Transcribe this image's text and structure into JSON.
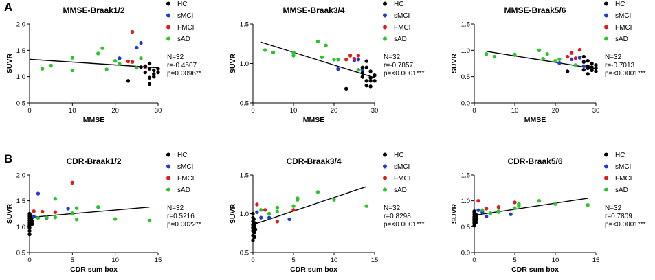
{
  "colors": {
    "HC": "#000000",
    "sMCI": "#1f3bd1",
    "FMCI": "#e11b1b",
    "sAD": "#2cc42c"
  },
  "legend": [
    "HC",
    "sMCI",
    "FMCI",
    "sAD"
  ],
  "panel_labels": [
    "A",
    "B"
  ],
  "chart_data": [
    {
      "type": "scatter",
      "title": "MMSE-Braak1/2",
      "xlabel": "MMSE",
      "ylabel": "SUVR",
      "xlim": [
        0,
        30
      ],
      "ylim": [
        0.5,
        2.0
      ],
      "xticks": [
        0,
        10,
        20,
        30
      ],
      "yticks": [
        "0.5",
        "1.0",
        "1.5",
        "2.0"
      ],
      "fit": [
        [
          0,
          1.33
        ],
        [
          30,
          1.17
        ]
      ],
      "stats": [
        "N=32",
        "r=-0.4507",
        "p=0.0096**"
      ],
      "points": [
        {
          "g": "sAD",
          "x": 3,
          "y": 1.15
        },
        {
          "g": "sAD",
          "x": 5,
          "y": 1.21
        },
        {
          "g": "sAD",
          "x": 10,
          "y": 1.36
        },
        {
          "g": "sAD",
          "x": 10,
          "y": 1.12
        },
        {
          "g": "sAD",
          "x": 16,
          "y": 1.44
        },
        {
          "g": "sAD",
          "x": 17,
          "y": 1.54
        },
        {
          "g": "sAD",
          "x": 18,
          "y": 1.14
        },
        {
          "g": "sAD",
          "x": 20,
          "y": 1.3
        },
        {
          "g": "sAD",
          "x": 21,
          "y": 1.24
        },
        {
          "g": "sAD",
          "x": 25,
          "y": 1.17
        },
        {
          "g": "sAD",
          "x": 26,
          "y": 1.35
        },
        {
          "g": "sMCI",
          "x": 21,
          "y": 1.35
        },
        {
          "g": "sMCI",
          "x": 25,
          "y": 1.55
        },
        {
          "g": "sMCI",
          "x": 26,
          "y": 1.64
        },
        {
          "g": "sMCI",
          "x": 27,
          "y": 1.18
        },
        {
          "g": "FMCI",
          "x": 23,
          "y": 1.29
        },
        {
          "g": "FMCI",
          "x": 24,
          "y": 1.85
        },
        {
          "g": "FMCI",
          "x": 24,
          "y": 1.28
        },
        {
          "g": "FMCI",
          "x": 27,
          "y": 1.18
        },
        {
          "g": "HC",
          "x": 23,
          "y": 0.92
        },
        {
          "g": "HC",
          "x": 26,
          "y": 1.18
        },
        {
          "g": "HC",
          "x": 27,
          "y": 1.2
        },
        {
          "g": "HC",
          "x": 27,
          "y": 1.08
        },
        {
          "g": "HC",
          "x": 28,
          "y": 0.98
        },
        {
          "g": "HC",
          "x": 28,
          "y": 0.86
        },
        {
          "g": "HC",
          "x": 28,
          "y": 1.15
        },
        {
          "g": "HC",
          "x": 29,
          "y": 1.12
        },
        {
          "g": "HC",
          "x": 29,
          "y": 1.05
        },
        {
          "g": "HC",
          "x": 28,
          "y": 1.25
        },
        {
          "g": "HC",
          "x": 30,
          "y": 1.08
        },
        {
          "g": "HC",
          "x": 30,
          "y": 1.15
        },
        {
          "g": "HC",
          "x": 29,
          "y": 1.0
        }
      ]
    },
    {
      "type": "scatter",
      "title": "MMSE-Braak3/4",
      "xlabel": "MMSE",
      "ylabel": "SUVR",
      "xlim": [
        0,
        30
      ],
      "ylim": [
        0.5,
        1.5
      ],
      "xticks": [
        0,
        10,
        20,
        30
      ],
      "yticks": [
        "0.5",
        "1.0",
        "1.5"
      ],
      "fit": [
        [
          2,
          1.27
        ],
        [
          30,
          0.82
        ]
      ],
      "stats": [
        "N=32",
        "r=-0.7857",
        "p=<0.0001***"
      ],
      "points": [
        {
          "g": "sAD",
          "x": 3,
          "y": 1.17
        },
        {
          "g": "sAD",
          "x": 5,
          "y": 1.14
        },
        {
          "g": "sAD",
          "x": 10,
          "y": 1.14
        },
        {
          "g": "sAD",
          "x": 10,
          "y": 1.1
        },
        {
          "g": "sAD",
          "x": 16,
          "y": 1.28
        },
        {
          "g": "sAD",
          "x": 17,
          "y": 1.08
        },
        {
          "g": "sAD",
          "x": 18,
          "y": 1.23
        },
        {
          "g": "sAD",
          "x": 20,
          "y": 1.05
        },
        {
          "g": "sAD",
          "x": 21,
          "y": 1.05
        },
        {
          "g": "sAD",
          "x": 26,
          "y": 0.92
        },
        {
          "g": "sMCI",
          "x": 21,
          "y": 0.93
        },
        {
          "g": "sMCI",
          "x": 25,
          "y": 1.04
        },
        {
          "g": "sMCI",
          "x": 26,
          "y": 1.05
        },
        {
          "g": "sMCI",
          "x": 27,
          "y": 0.92
        },
        {
          "g": "FMCI",
          "x": 24,
          "y": 1.1
        },
        {
          "g": "FMCI",
          "x": 25,
          "y": 1.06
        },
        {
          "g": "FMCI",
          "x": 26,
          "y": 1.1
        },
        {
          "g": "FMCI",
          "x": 23,
          "y": 1.05
        },
        {
          "g": "HC",
          "x": 23,
          "y": 0.68
        },
        {
          "g": "HC",
          "x": 27,
          "y": 0.88
        },
        {
          "g": "HC",
          "x": 27,
          "y": 0.83
        },
        {
          "g": "HC",
          "x": 28,
          "y": 0.78
        },
        {
          "g": "HC",
          "x": 28,
          "y": 0.72
        },
        {
          "g": "HC",
          "x": 28,
          "y": 0.95
        },
        {
          "g": "HC",
          "x": 29,
          "y": 0.78
        },
        {
          "g": "HC",
          "x": 29,
          "y": 0.9
        },
        {
          "g": "HC",
          "x": 29,
          "y": 0.71
        },
        {
          "g": "HC",
          "x": 30,
          "y": 0.78
        },
        {
          "g": "HC",
          "x": 30,
          "y": 0.85
        },
        {
          "g": "HC",
          "x": 28,
          "y": 1.03
        },
        {
          "g": "HC",
          "x": 29,
          "y": 0.82
        },
        {
          "g": "HC",
          "x": 27,
          "y": 0.95
        }
      ]
    },
    {
      "type": "scatter",
      "title": "MMSE-Braak5/6",
      "xlabel": "MMSE",
      "ylabel": "SUVR",
      "xlim": [
        0,
        30
      ],
      "ylim": [
        0.0,
        1.5
      ],
      "xticks": [
        0,
        10,
        20,
        30
      ],
      "yticks": [
        "0.0",
        "0.5",
        "1.0",
        "1.5"
      ],
      "fit": [
        [
          3,
          0.98
        ],
        [
          30,
          0.65
        ]
      ],
      "stats": [
        "N=32",
        "r=-0.7013",
        "p=<0.0001***"
      ],
      "points": [
        {
          "g": "sAD",
          "x": 3,
          "y": 0.93
        },
        {
          "g": "sAD",
          "x": 5,
          "y": 0.88
        },
        {
          "g": "sAD",
          "x": 10,
          "y": 0.92
        },
        {
          "g": "sAD",
          "x": 10,
          "y": 0.91
        },
        {
          "g": "sAD",
          "x": 16,
          "y": 1.0
        },
        {
          "g": "sAD",
          "x": 17,
          "y": 0.84
        },
        {
          "g": "sAD",
          "x": 18,
          "y": 0.93
        },
        {
          "g": "sAD",
          "x": 20,
          "y": 0.8
        },
        {
          "g": "sAD",
          "x": 21,
          "y": 0.83
        },
        {
          "g": "sAD",
          "x": 25,
          "y": 0.72
        },
        {
          "g": "sMCI",
          "x": 24,
          "y": 0.83
        },
        {
          "g": "sMCI",
          "x": 26,
          "y": 0.86
        },
        {
          "g": "sMCI",
          "x": 27,
          "y": 0.7
        },
        {
          "g": "sMCI",
          "x": 21,
          "y": 0.76
        },
        {
          "g": "FMCI",
          "x": 23,
          "y": 0.88
        },
        {
          "g": "FMCI",
          "x": 24,
          "y": 0.95
        },
        {
          "g": "FMCI",
          "x": 26,
          "y": 1.01
        },
        {
          "g": "FMCI",
          "x": 25,
          "y": 0.85
        },
        {
          "g": "HC",
          "x": 23,
          "y": 0.6
        },
        {
          "g": "HC",
          "x": 27,
          "y": 0.78
        },
        {
          "g": "HC",
          "x": 27,
          "y": 0.63
        },
        {
          "g": "HC",
          "x": 28,
          "y": 0.7
        },
        {
          "g": "HC",
          "x": 28,
          "y": 0.55
        },
        {
          "g": "HC",
          "x": 28,
          "y": 0.8
        },
        {
          "g": "HC",
          "x": 29,
          "y": 0.68
        },
        {
          "g": "HC",
          "x": 29,
          "y": 0.75
        },
        {
          "g": "HC",
          "x": 29,
          "y": 0.62
        },
        {
          "g": "HC",
          "x": 30,
          "y": 0.66
        },
        {
          "g": "HC",
          "x": 30,
          "y": 0.72
        },
        {
          "g": "HC",
          "x": 27,
          "y": 0.88
        },
        {
          "g": "HC",
          "x": 28,
          "y": 0.66
        },
        {
          "g": "HC",
          "x": 30,
          "y": 0.6
        }
      ]
    },
    {
      "type": "scatter",
      "title": "CDR-Braak1/2",
      "xlabel": "CDR sum box",
      "ylabel": "SUVR",
      "xlim": [
        0,
        15
      ],
      "ylim": [
        0.5,
        2.0
      ],
      "xticks": [
        0,
        5,
        10,
        15
      ],
      "yticks": [
        "0.5",
        "1.0",
        "1.5",
        "2.0"
      ],
      "fit": [
        [
          0,
          1.18
        ],
        [
          14,
          1.38
        ]
      ],
      "stats": [
        "N=32",
        "r=0.5216",
        "p=0.0022**"
      ],
      "points": [
        {
          "g": "HC",
          "x": 0,
          "y": 0.85
        },
        {
          "g": "HC",
          "x": 0,
          "y": 0.92
        },
        {
          "g": "HC",
          "x": 0,
          "y": 0.98
        },
        {
          "g": "HC",
          "x": 0,
          "y": 1.03
        },
        {
          "g": "HC",
          "x": 0,
          "y": 1.07
        },
        {
          "g": "HC",
          "x": 0,
          "y": 1.12
        },
        {
          "g": "HC",
          "x": 0,
          "y": 1.16
        },
        {
          "g": "HC",
          "x": 0,
          "y": 1.2
        },
        {
          "g": "HC",
          "x": 0,
          "y": 1.25
        },
        {
          "g": "HC",
          "x": 0.3,
          "y": 1.1
        },
        {
          "g": "HC",
          "x": 0.3,
          "y": 1.05
        },
        {
          "g": "HC",
          "x": 0.3,
          "y": 1.18
        },
        {
          "g": "HC",
          "x": 0.2,
          "y": 1.15
        },
        {
          "g": "HC",
          "x": 0.1,
          "y": 1.22
        },
        {
          "g": "sMCI",
          "x": 0.5,
          "y": 1.2
        },
        {
          "g": "sMCI",
          "x": 1,
          "y": 1.64
        },
        {
          "g": "sMCI",
          "x": 2,
          "y": 1.17
        },
        {
          "g": "sMCI",
          "x": 4.5,
          "y": 1.35
        },
        {
          "g": "FMCI",
          "x": 0.5,
          "y": 1.3
        },
        {
          "g": "FMCI",
          "x": 1.5,
          "y": 1.29
        },
        {
          "g": "FMCI",
          "x": 3,
          "y": 1.28
        },
        {
          "g": "FMCI",
          "x": 5,
          "y": 1.85
        },
        {
          "g": "sAD",
          "x": 1,
          "y": 1.17
        },
        {
          "g": "sAD",
          "x": 2,
          "y": 1.18
        },
        {
          "g": "sAD",
          "x": 3,
          "y": 1.18
        },
        {
          "g": "sAD",
          "x": 3,
          "y": 1.54
        },
        {
          "g": "sAD",
          "x": 5,
          "y": 1.26
        },
        {
          "g": "sAD",
          "x": 5.5,
          "y": 1.14
        },
        {
          "g": "sAD",
          "x": 5.5,
          "y": 1.36
        },
        {
          "g": "sAD",
          "x": 8,
          "y": 1.38
        },
        {
          "g": "sAD",
          "x": 10,
          "y": 1.15
        },
        {
          "g": "sAD",
          "x": 14,
          "y": 1.12
        }
      ]
    },
    {
      "type": "scatter",
      "title": "CDR-Braak3/4",
      "xlabel": "CDR sum box",
      "ylabel": "SUVR",
      "xlim": [
        0,
        15
      ],
      "ylim": [
        0.5,
        1.5
      ],
      "xticks": [
        0,
        5,
        10,
        15
      ],
      "yticks": [
        "0.5",
        "1.0",
        "1.5"
      ],
      "fit": [
        [
          0,
          0.86
        ],
        [
          14,
          1.35
        ]
      ],
      "stats": [
        "N=32",
        "r=0.8298",
        "p=<0.0001***"
      ],
      "points": [
        {
          "g": "HC",
          "x": 0,
          "y": 0.66
        },
        {
          "g": "HC",
          "x": 0,
          "y": 0.72
        },
        {
          "g": "HC",
          "x": 0,
          "y": 0.78
        },
        {
          "g": "HC",
          "x": 0,
          "y": 0.82
        },
        {
          "g": "HC",
          "x": 0,
          "y": 0.86
        },
        {
          "g": "HC",
          "x": 0,
          "y": 0.9
        },
        {
          "g": "HC",
          "x": 0,
          "y": 0.95
        },
        {
          "g": "HC",
          "x": 0,
          "y": 1.0
        },
        {
          "g": "HC",
          "x": 0.2,
          "y": 0.76
        },
        {
          "g": "HC",
          "x": 0.2,
          "y": 0.84
        },
        {
          "g": "HC",
          "x": 0.3,
          "y": 0.88
        },
        {
          "g": "HC",
          "x": 0.1,
          "y": 0.93
        },
        {
          "g": "HC",
          "x": 0.2,
          "y": 0.7
        },
        {
          "g": "HC",
          "x": 0.3,
          "y": 0.8
        },
        {
          "g": "sMCI",
          "x": 0.5,
          "y": 1.02
        },
        {
          "g": "sMCI",
          "x": 1,
          "y": 0.95
        },
        {
          "g": "sMCI",
          "x": 2,
          "y": 0.95
        },
        {
          "g": "sMCI",
          "x": 4.5,
          "y": 0.93
        },
        {
          "g": "FMCI",
          "x": 0.5,
          "y": 1.12
        },
        {
          "g": "FMCI",
          "x": 1.5,
          "y": 1.05
        },
        {
          "g": "FMCI",
          "x": 3,
          "y": 0.9
        },
        {
          "g": "FMCI",
          "x": 5,
          "y": 1.05
        },
        {
          "g": "sAD",
          "x": 1,
          "y": 1.05
        },
        {
          "g": "sAD",
          "x": 2,
          "y": 1.0
        },
        {
          "g": "sAD",
          "x": 3,
          "y": 1.03
        },
        {
          "g": "sAD",
          "x": 3,
          "y": 1.08
        },
        {
          "g": "sAD",
          "x": 5,
          "y": 1.1
        },
        {
          "g": "sAD",
          "x": 5.5,
          "y": 1.2
        },
        {
          "g": "sAD",
          "x": 5.5,
          "y": 1.18
        },
        {
          "g": "sAD",
          "x": 8,
          "y": 1.28
        },
        {
          "g": "sAD",
          "x": 10,
          "y": 1.18
        },
        {
          "g": "sAD",
          "x": 14,
          "y": 1.1
        }
      ]
    },
    {
      "type": "scatter",
      "title": "CDR-Braak5/6",
      "xlabel": "CDR sum box",
      "ylabel": "SUVR",
      "xlim": [
        0,
        15
      ],
      "ylim": [
        0.0,
        1.5
      ],
      "xticks": [
        0,
        5,
        10,
        15
      ],
      "yticks": [
        "0.0",
        "0.5",
        "1.0",
        "1.5"
      ],
      "fit": [
        [
          0,
          0.72
        ],
        [
          14,
          1.05
        ]
      ],
      "stats": [
        "N=32",
        "r=0.7809",
        "p=<0.0001***"
      ],
      "points": [
        {
          "g": "HC",
          "x": 0,
          "y": 0.52
        },
        {
          "g": "HC",
          "x": 0,
          "y": 0.57
        },
        {
          "g": "HC",
          "x": 0,
          "y": 0.61
        },
        {
          "g": "HC",
          "x": 0,
          "y": 0.65
        },
        {
          "g": "HC",
          "x": 0,
          "y": 0.69
        },
        {
          "g": "HC",
          "x": 0,
          "y": 0.73
        },
        {
          "g": "HC",
          "x": 0,
          "y": 0.77
        },
        {
          "g": "HC",
          "x": 0,
          "y": 0.8
        },
        {
          "g": "HC",
          "x": 0.2,
          "y": 0.62
        },
        {
          "g": "HC",
          "x": 0.2,
          "y": 0.68
        },
        {
          "g": "HC",
          "x": 0.3,
          "y": 0.72
        },
        {
          "g": "HC",
          "x": 0.1,
          "y": 0.75
        },
        {
          "g": "HC",
          "x": 0.2,
          "y": 0.58
        },
        {
          "g": "HC",
          "x": 0.3,
          "y": 0.66
        },
        {
          "g": "sMCI",
          "x": 0.5,
          "y": 0.82
        },
        {
          "g": "sMCI",
          "x": 1,
          "y": 0.78
        },
        {
          "g": "sMCI",
          "x": 1.5,
          "y": 0.7
        },
        {
          "g": "sMCI",
          "x": 4.5,
          "y": 0.74
        },
        {
          "g": "FMCI",
          "x": 0.5,
          "y": 1.0
        },
        {
          "g": "FMCI",
          "x": 1.5,
          "y": 0.85
        },
        {
          "g": "FMCI",
          "x": 3,
          "y": 0.88
        },
        {
          "g": "FMCI",
          "x": 5,
          "y": 0.97
        },
        {
          "g": "sAD",
          "x": 1,
          "y": 0.82
        },
        {
          "g": "sAD",
          "x": 2,
          "y": 0.76
        },
        {
          "g": "sAD",
          "x": 3,
          "y": 0.8
        },
        {
          "g": "sAD",
          "x": 3,
          "y": 0.78
        },
        {
          "g": "sAD",
          "x": 5,
          "y": 0.86
        },
        {
          "g": "sAD",
          "x": 5.5,
          "y": 0.94
        },
        {
          "g": "sAD",
          "x": 5.5,
          "y": 0.9
        },
        {
          "g": "sAD",
          "x": 8,
          "y": 1.0
        },
        {
          "g": "sAD",
          "x": 10,
          "y": 0.94
        },
        {
          "g": "sAD",
          "x": 14,
          "y": 0.92
        }
      ]
    }
  ]
}
